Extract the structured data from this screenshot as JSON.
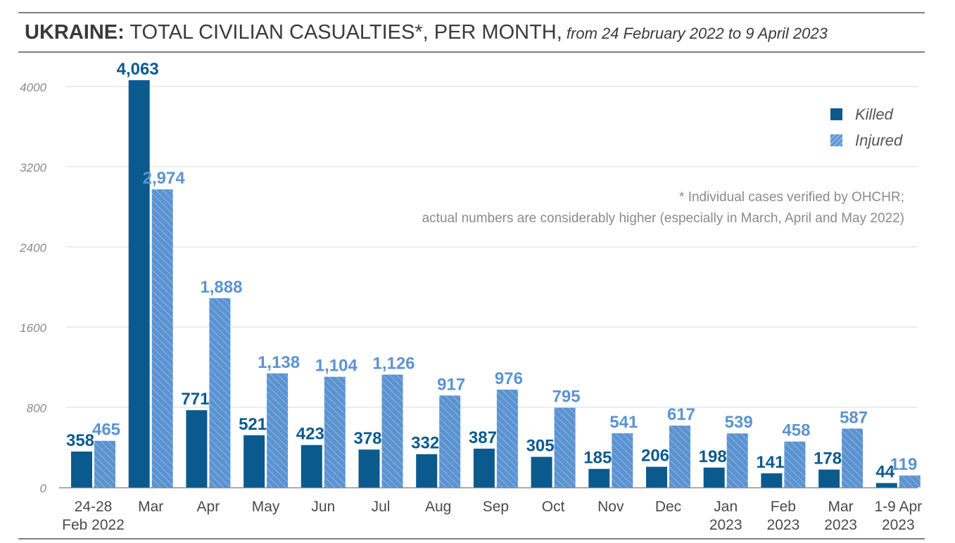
{
  "title": {
    "lead": "UKRAINE:",
    "rest": " TOTAL CIVILIAN CASUALTIES*, PER MONTH,",
    "sub": " from 24 February 2022 to 9 April 2023"
  },
  "footnote": {
    "line1": "* Individual cases verified by OHCHR;",
    "line2": "actual numbers are considerably higher (especially in March, April and May 2022)"
  },
  "colors": {
    "killed": "#0b5a8e",
    "injured": "#5b93d1",
    "grid": "#d9d9d9",
    "axis": "#8c8c8c",
    "tick_text": "#8a8a8a",
    "category_text": "#4a4a4a"
  },
  "chart_data": {
    "type": "bar",
    "categories": [
      [
        "24-28",
        "Feb 2022"
      ],
      [
        "Mar"
      ],
      [
        "Apr"
      ],
      [
        "May"
      ],
      [
        "Jun"
      ],
      [
        "Jul"
      ],
      [
        "Aug"
      ],
      [
        "Sep"
      ],
      [
        "Oct"
      ],
      [
        "Nov"
      ],
      [
        "Dec"
      ],
      [
        "Jan",
        "2023"
      ],
      [
        "Feb",
        "2023"
      ],
      [
        "Mar",
        "2023"
      ],
      [
        "1-9 Apr",
        "2023"
      ]
    ],
    "series": [
      {
        "name": "Killed",
        "values": [
          358,
          4063,
          771,
          521,
          423,
          378,
          332,
          387,
          305,
          185,
          206,
          198,
          141,
          178,
          44
        ],
        "labels": [
          "358",
          "4,063",
          "771",
          "521",
          "423",
          "378",
          "332",
          "387",
          "305",
          "185",
          "206",
          "198",
          "141",
          "178",
          "44"
        ]
      },
      {
        "name": "Injured",
        "values": [
          465,
          2974,
          1888,
          1138,
          1104,
          1126,
          917,
          976,
          795,
          541,
          617,
          539,
          458,
          587,
          119
        ],
        "labels": [
          "465",
          "2,974",
          "1,888",
          "1,138",
          "1,104",
          "1,126",
          "917",
          "976",
          "795",
          "541",
          "617",
          "539",
          "458",
          "587",
          "119"
        ]
      }
    ],
    "yticks": [
      "0",
      "800",
      "1600",
      "2400",
      "3200",
      "4000"
    ],
    "ylim": [
      0,
      4000
    ],
    "grid": true,
    "legend_position": "top-right",
    "injured_pattern": "diagonal hatch"
  }
}
